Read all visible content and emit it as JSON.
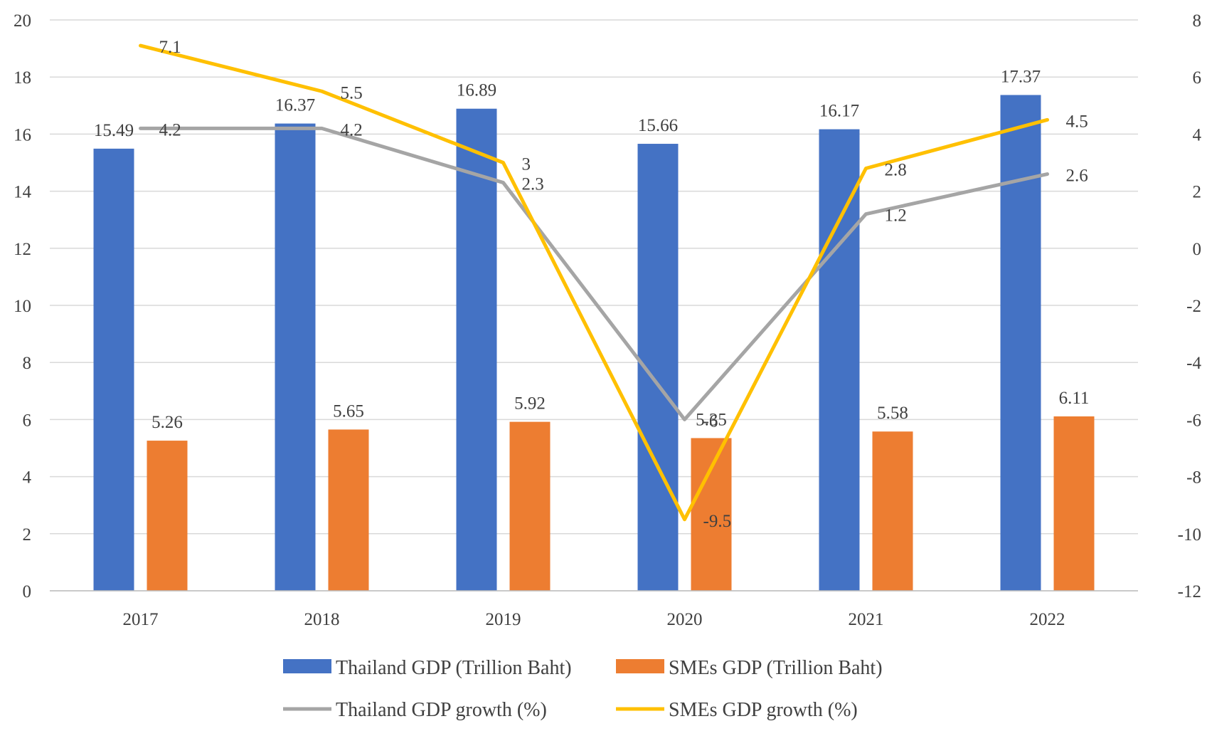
{
  "chart_data": {
    "type": "bar",
    "categories": [
      "2017",
      "2018",
      "2019",
      "2020",
      "2021",
      "2022"
    ],
    "series": [
      {
        "name": "Thailand GDP (Trillion Baht)",
        "kind": "bar",
        "axis": "left",
        "color": "#4472c4",
        "values": [
          15.49,
          16.37,
          16.89,
          15.66,
          16.17,
          17.37
        ],
        "labels": [
          "15.49",
          "16.37",
          "16.89",
          "15.66",
          "16.17",
          "17.37"
        ]
      },
      {
        "name": "SMEs GDP (Trillion Baht)",
        "kind": "bar",
        "axis": "left",
        "color": "#ed7d31",
        "values": [
          5.26,
          5.65,
          5.92,
          5.35,
          5.58,
          6.11
        ],
        "labels": [
          "5.26",
          "5.65",
          "5.92",
          "5.35",
          "5.58",
          "6.11"
        ]
      },
      {
        "name": "Thailand GDP growth (%)",
        "kind": "line",
        "axis": "right",
        "color": "#a5a5a5",
        "values": [
          4.2,
          4.2,
          2.3,
          -6,
          1.2,
          2.6
        ],
        "labels": [
          "4.2",
          "4.2",
          "2.3",
          "-6",
          "1.2",
          "2.6"
        ]
      },
      {
        "name": "SMEs GDP growth (%)",
        "kind": "line",
        "axis": "right",
        "color": "#ffc000",
        "values": [
          7.1,
          5.5,
          3,
          -9.5,
          2.8,
          4.5
        ],
        "labels": [
          "7.1",
          "5.5",
          "3",
          "-9.5",
          "2.8",
          "4.5"
        ]
      }
    ],
    "y_left": {
      "range": [
        0,
        20
      ],
      "ticks": [
        "0",
        "2",
        "4",
        "6",
        "8",
        "10",
        "12",
        "14",
        "16",
        "18",
        "20"
      ]
    },
    "y_right": {
      "range": [
        -12,
        8
      ],
      "ticks": [
        "-12",
        "-10",
        "-8",
        "-6",
        "-4",
        "-2",
        "0",
        "2",
        "4",
        "6",
        "8"
      ]
    },
    "title": "",
    "xlabel": "",
    "ylabel": "",
    "grid": true,
    "legend_position": "bottom"
  }
}
